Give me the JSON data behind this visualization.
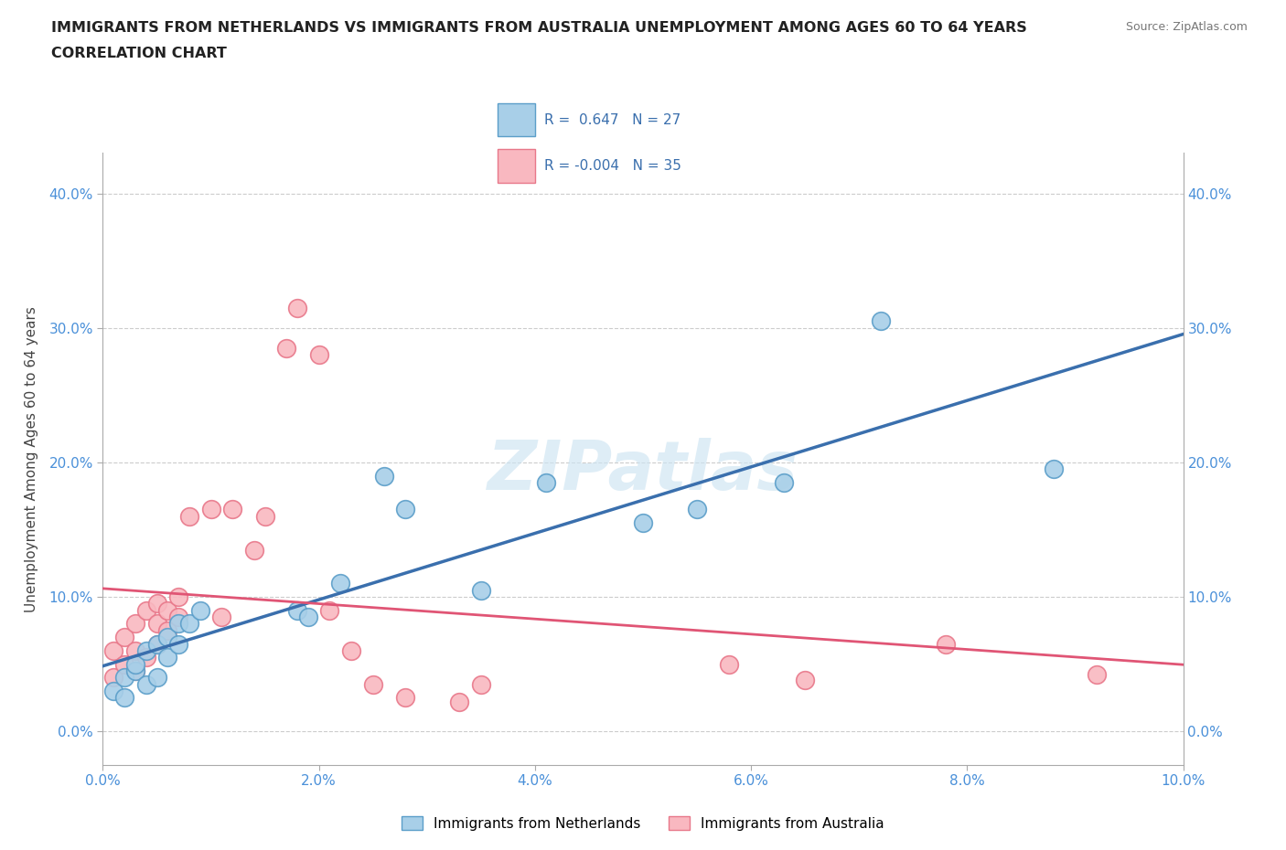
{
  "title_line1": "IMMIGRANTS FROM NETHERLANDS VS IMMIGRANTS FROM AUSTRALIA UNEMPLOYMENT AMONG AGES 60 TO 64 YEARS",
  "title_line2": "CORRELATION CHART",
  "source_text": "Source: ZipAtlas.com",
  "ylabel": "Unemployment Among Ages 60 to 64 years",
  "xlim": [
    0.0,
    0.1
  ],
  "ylim": [
    -0.025,
    0.43
  ],
  "xtick_vals": [
    0.0,
    0.02,
    0.04,
    0.06,
    0.08,
    0.1
  ],
  "ytick_vals": [
    0.0,
    0.1,
    0.2,
    0.3,
    0.4
  ],
  "netherlands_color": "#a8cfe8",
  "netherlands_edge": "#5b9ec9",
  "australia_color": "#f9b8c0",
  "australia_edge": "#e8788a",
  "R_netherlands": 0.647,
  "N_netherlands": 27,
  "R_australia": -0.004,
  "N_australia": 35,
  "trendline_netherlands_color": "#3a6fad",
  "trendline_australia_color": "#e05575",
  "watermark": "ZIPatlas",
  "netherlands_x": [
    0.001,
    0.002,
    0.002,
    0.003,
    0.003,
    0.004,
    0.004,
    0.005,
    0.005,
    0.006,
    0.006,
    0.007,
    0.007,
    0.008,
    0.009,
    0.018,
    0.019,
    0.022,
    0.026,
    0.028,
    0.035,
    0.041,
    0.05,
    0.055,
    0.063,
    0.072,
    0.088
  ],
  "netherlands_y": [
    0.03,
    0.04,
    0.025,
    0.045,
    0.05,
    0.035,
    0.06,
    0.04,
    0.065,
    0.055,
    0.07,
    0.065,
    0.08,
    0.08,
    0.09,
    0.09,
    0.085,
    0.11,
    0.19,
    0.165,
    0.105,
    0.185,
    0.155,
    0.165,
    0.185,
    0.305,
    0.195
  ],
  "australia_x": [
    0.001,
    0.001,
    0.002,
    0.002,
    0.003,
    0.003,
    0.003,
    0.004,
    0.004,
    0.005,
    0.005,
    0.005,
    0.006,
    0.006,
    0.007,
    0.007,
    0.008,
    0.01,
    0.011,
    0.012,
    0.014,
    0.015,
    0.017,
    0.018,
    0.02,
    0.021,
    0.023,
    0.025,
    0.028,
    0.033,
    0.035,
    0.058,
    0.065,
    0.078,
    0.092
  ],
  "australia_y": [
    0.04,
    0.06,
    0.05,
    0.07,
    0.045,
    0.06,
    0.08,
    0.055,
    0.09,
    0.065,
    0.08,
    0.095,
    0.075,
    0.09,
    0.085,
    0.1,
    0.16,
    0.165,
    0.085,
    0.165,
    0.135,
    0.16,
    0.285,
    0.315,
    0.28,
    0.09,
    0.06,
    0.035,
    0.025,
    0.022,
    0.035,
    0.05,
    0.038,
    0.065,
    0.042
  ]
}
